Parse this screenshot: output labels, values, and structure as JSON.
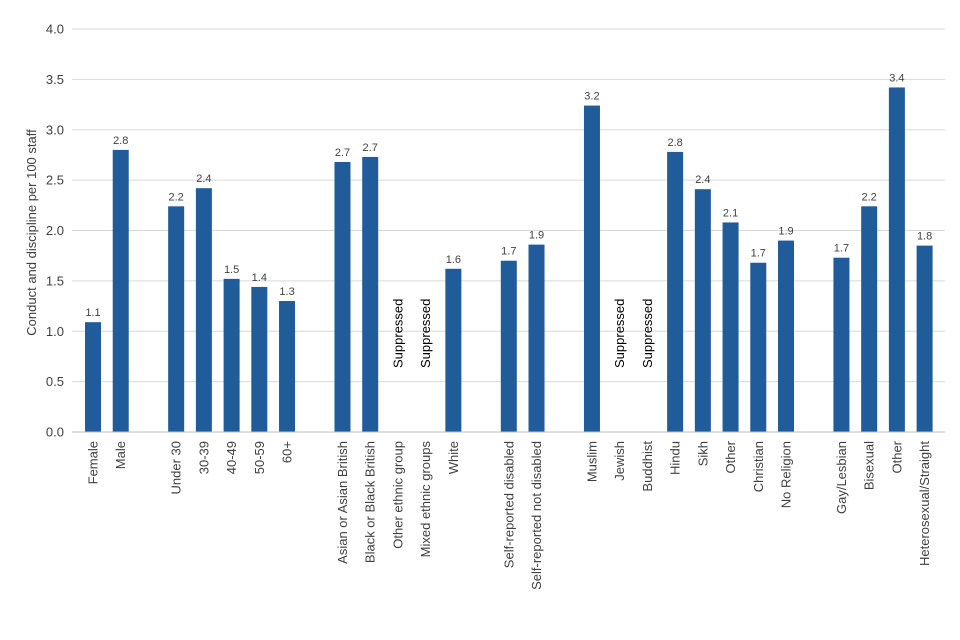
{
  "chart_data": {
    "type": "bar",
    "ylabel": "Conduct and discipline per 100 staff",
    "xlabel": "",
    "ylim": [
      0,
      4.0
    ],
    "yticks": [
      "0.0",
      "0.5",
      "1.0",
      "1.5",
      "2.0",
      "2.5",
      "3.0",
      "3.5",
      "4.0"
    ],
    "grid": true,
    "bar_color": "#1F5C99",
    "suppressed_label": "Suppressed",
    "groups": [
      {
        "bars": [
          {
            "category": "Female",
            "value": 1.09,
            "label": "1.1"
          },
          {
            "category": "Male",
            "value": 2.8,
            "label": "2.8"
          }
        ]
      },
      {
        "bars": [
          {
            "category": "Under 30",
            "value": 2.24,
            "label": "2.2"
          },
          {
            "category": "30-39",
            "value": 2.42,
            "label": "2.4"
          },
          {
            "category": "40-49",
            "value": 1.52,
            "label": "1.5"
          },
          {
            "category": "50-59",
            "value": 1.44,
            "label": "1.4"
          },
          {
            "category": "60+",
            "value": 1.3,
            "label": "1.3"
          }
        ]
      },
      {
        "bars": [
          {
            "category": "Asian or Asian British",
            "value": 2.68,
            "label": "2.7"
          },
          {
            "category": "Black or Black British",
            "value": 2.73,
            "label": "2.7"
          },
          {
            "category": "Other ethnic group",
            "value": null,
            "label": "Suppressed"
          },
          {
            "category": "Mixed ethnic groups",
            "value": null,
            "label": "Suppressed"
          },
          {
            "category": "White",
            "value": 1.62,
            "label": "1.6"
          }
        ]
      },
      {
        "bars": [
          {
            "category": "Self-reported disabled",
            "value": 1.7,
            "label": "1.7"
          },
          {
            "category": "Self-reported not disabled",
            "value": 1.86,
            "label": "1.9"
          }
        ]
      },
      {
        "bars": [
          {
            "category": "Muslim",
            "value": 3.24,
            "label": "3.2"
          },
          {
            "category": "Jewish",
            "value": null,
            "label": "Suppressed"
          },
          {
            "category": "Buddhist",
            "value": null,
            "label": "Suppressed"
          },
          {
            "category": "Hindu",
            "value": 2.78,
            "label": "2.8"
          },
          {
            "category": "Sikh",
            "value": 2.41,
            "label": "2.4"
          },
          {
            "category": "Other",
            "value": 2.08,
            "label": "2.1"
          },
          {
            "category": "Christian",
            "value": 1.68,
            "label": "1.7"
          },
          {
            "category": "No Religion",
            "value": 1.9,
            "label": "1.9"
          }
        ]
      },
      {
        "bars": [
          {
            "category": "Gay/Lesbian",
            "value": 1.73,
            "label": "1.7"
          },
          {
            "category": "Bisexual",
            "value": 2.24,
            "label": "2.2"
          },
          {
            "category": "Other",
            "value": 3.42,
            "label": "3.4"
          },
          {
            "category": "Heterosexual/Straight",
            "value": 1.85,
            "label": "1.8"
          }
        ]
      }
    ]
  }
}
